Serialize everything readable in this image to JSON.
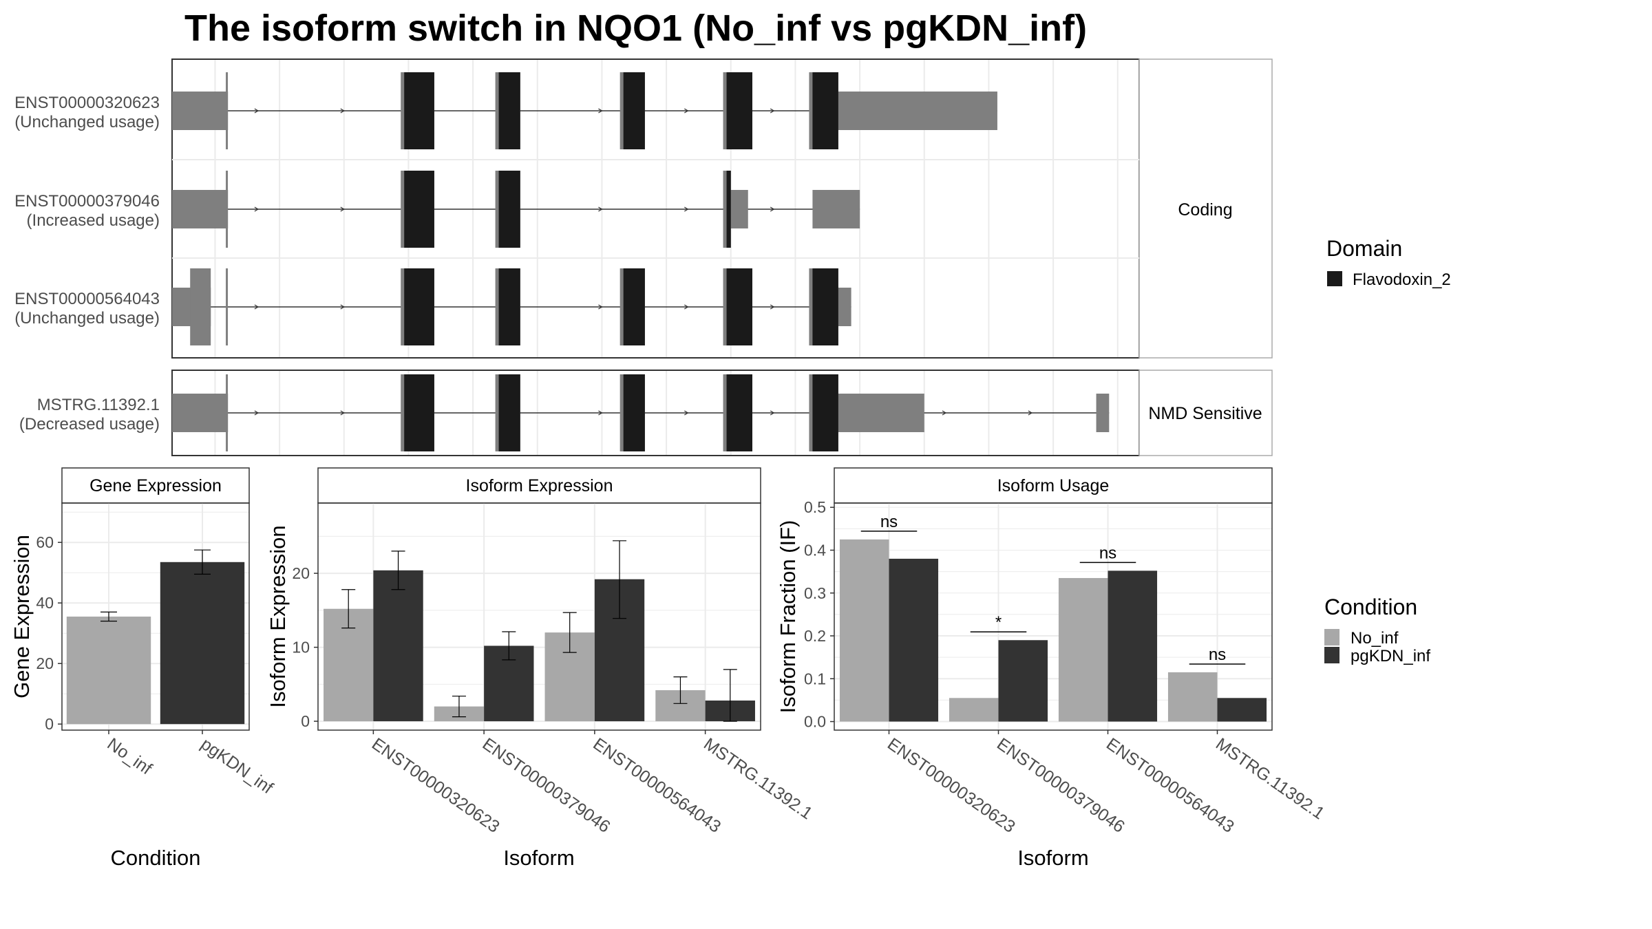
{
  "title": "The isoform switch in NQO1 (No_inf vs pgKDN_inf)",
  "transcript_panel": {
    "transcripts": [
      {
        "id": "ENST00000320623",
        "usage": "(Unchanged usage)",
        "group": "Coding",
        "utr": [
          [
            0.0,
            1.3
          ],
          [
            15.0,
            19.2
          ]
        ],
        "cds": [
          [
            5.4,
            6.1
          ],
          [
            7.6,
            8.1
          ],
          [
            10.5,
            11.0
          ],
          [
            12.9,
            13.5
          ],
          [
            14.9,
            15.5
          ]
        ],
        "domain": [
          [
            5.4,
            6.1
          ],
          [
            7.6,
            8.1
          ],
          [
            10.5,
            11.0
          ],
          [
            12.9,
            13.5
          ],
          [
            14.9,
            15.5
          ]
        ]
      },
      {
        "id": "ENST00000379046",
        "usage": "(Increased usage)",
        "group": "Coding",
        "utr": [
          [
            0.0,
            1.3
          ],
          [
            12.9,
            13.4
          ],
          [
            14.9,
            16.0
          ]
        ],
        "cds": [
          [
            5.4,
            6.1
          ],
          [
            7.6,
            8.1
          ],
          [
            12.9,
            13.0
          ]
        ],
        "domain": [
          [
            5.4,
            6.1
          ],
          [
            7.6,
            8.1
          ],
          [
            12.9,
            13.0
          ]
        ]
      },
      {
        "id": "ENST00000564043",
        "usage": "(Unchanged usage)",
        "group": "Coding",
        "utr": [
          [
            0.0,
            0.9
          ],
          [
            15.0,
            15.8
          ]
        ],
        "cds": [
          [
            0.5,
            0.9
          ],
          [
            5.4,
            6.1
          ],
          [
            7.6,
            8.1
          ],
          [
            10.5,
            11.0
          ],
          [
            12.9,
            13.5
          ],
          [
            14.9,
            15.5
          ]
        ],
        "domain": [
          [
            5.4,
            6.1
          ],
          [
            7.6,
            8.1
          ],
          [
            10.5,
            11.0
          ],
          [
            12.9,
            13.5
          ],
          [
            14.9,
            15.5
          ]
        ]
      },
      {
        "id": "MSTRG.11392.1",
        "usage": "(Decreased usage)",
        "group": "NMD Sensitive",
        "utr": [
          [
            0.0,
            1.3
          ],
          [
            15.0,
            17.5
          ],
          [
            21.5,
            21.8
          ]
        ],
        "cds": [
          [
            5.4,
            6.1
          ],
          [
            7.6,
            8.1
          ],
          [
            10.5,
            11.0
          ],
          [
            12.9,
            13.5
          ],
          [
            14.9,
            15.5
          ]
        ],
        "domain": [
          [
            5.4,
            6.1
          ],
          [
            7.6,
            8.1
          ],
          [
            10.5,
            11.0
          ],
          [
            12.9,
            13.5
          ],
          [
            14.9,
            15.5
          ]
        ]
      }
    ],
    "groups": [
      "Coding",
      "NMD Sensitive"
    ]
  },
  "domain_legend": {
    "title": "Domain",
    "items": [
      {
        "label": "Flavodoxin_2",
        "color": "#1a1a1a"
      }
    ]
  },
  "condition_legend": {
    "title": "Condition",
    "items": [
      {
        "label": "No_inf",
        "color": "#a8a8a8"
      },
      {
        "label": "pgKDN_inf",
        "color": "#333333"
      }
    ]
  },
  "chart_data": [
    {
      "type": "bar",
      "strip": "Gene Expression",
      "categories": [
        "No_inf",
        "pgKDN_inf"
      ],
      "values": [
        35.5,
        53.5
      ],
      "errors": [
        [
          34.0,
          37.0
        ],
        [
          49.5,
          57.5
        ]
      ],
      "colors": [
        "#a8a8a8",
        "#333333"
      ],
      "xlabel": "Condition",
      "ylabel": "Gene Expression",
      "ylim": [
        -2,
        73
      ],
      "yticks": [
        0,
        20,
        40,
        60
      ]
    },
    {
      "type": "bar",
      "strip": "Isoform Expression",
      "categories": [
        "ENST00000320623",
        "ENST00000379046",
        "ENST00000564043",
        "MSTRG.11392.1"
      ],
      "series": [
        {
          "name": "No_inf",
          "values": [
            15.2,
            2.0,
            12.0,
            4.2
          ],
          "errors": [
            [
              12.6,
              17.8
            ],
            [
              0.6,
              3.4
            ],
            [
              9.3,
              14.7
            ],
            [
              2.4,
              6.0
            ]
          ]
        },
        {
          "name": "pgKDN_inf",
          "values": [
            20.4,
            10.2,
            19.2,
            2.8
          ],
          "errors": [
            [
              17.8,
              23.0
            ],
            [
              8.3,
              12.1
            ],
            [
              13.9,
              24.4
            ],
            [
              0.0,
              7.0
            ]
          ]
        }
      ],
      "xlabel": "Isoform",
      "ylabel": "Isoform Expression",
      "ylim": [
        -1.2,
        29.5
      ],
      "yticks": [
        0,
        10,
        20
      ]
    },
    {
      "type": "bar",
      "strip": "Isoform Usage",
      "categories": [
        "ENST00000320623",
        "ENST00000379046",
        "ENST00000564043",
        "MSTRG.11392.1"
      ],
      "series": [
        {
          "name": "No_inf",
          "values": [
            0.425,
            0.055,
            0.335,
            0.115
          ]
        },
        {
          "name": "pgKDN_inf",
          "values": [
            0.38,
            0.19,
            0.352,
            0.055
          ]
        }
      ],
      "significance": [
        "ns",
        "*",
        "ns",
        "ns"
      ],
      "xlabel": "Isoform",
      "ylabel": "Isoform Fraction (IF)",
      "ylim": [
        -0.02,
        0.51
      ],
      "yticks": [
        0.0,
        0.1,
        0.2,
        0.3,
        0.4,
        0.5
      ]
    }
  ]
}
